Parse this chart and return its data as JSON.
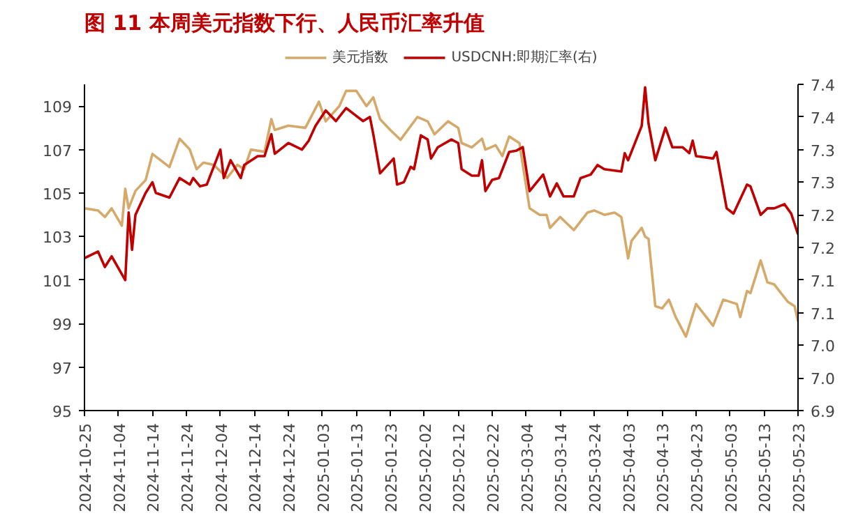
{
  "chart_data": {
    "type": "line",
    "title": "图 11 本周美元指数下行、人民币汇率升值",
    "xlim": [
      "2024-10-25",
      "2025-05-23"
    ],
    "xticks": [
      "2024-10-25",
      "2024-11-04",
      "2024-11-14",
      "2024-11-24",
      "2024-12-04",
      "2024-12-14",
      "2024-12-24",
      "2025-01-03",
      "2025-01-13",
      "2025-01-23",
      "2025-02-02",
      "2025-02-12",
      "2025-02-22",
      "2025-03-04",
      "2025-03-14",
      "2025-03-24",
      "2025-04-03",
      "2025-04-13",
      "2025-04-23",
      "2025-05-03",
      "2025-05-13",
      "2025-05-23"
    ],
    "ylim": [
      95,
      110
    ],
    "yticks": [
      95,
      97,
      99,
      101,
      103,
      105,
      107,
      109
    ],
    "y2lim": [
      6.9,
      7.45
    ],
    "y2ticks": [
      {
        "value": 6.9,
        "label": "6.9"
      },
      {
        "value": 6.955,
        "label": "7.0"
      },
      {
        "value": 7.01,
        "label": "7.0"
      },
      {
        "value": 7.065,
        "label": "7.1"
      },
      {
        "value": 7.12,
        "label": "7.1"
      },
      {
        "value": 7.175,
        "label": "7.2"
      },
      {
        "value": 7.23,
        "label": "7.2"
      },
      {
        "value": 7.285,
        "label": "7.3"
      },
      {
        "value": 7.34,
        "label": "7.3"
      },
      {
        "value": 7.395,
        "label": "7.4"
      },
      {
        "value": 7.45,
        "label": "7.4"
      }
    ],
    "grid": false,
    "legend": "top",
    "marker": "none",
    "line_style": "solid",
    "series": [
      {
        "name": "美元指数",
        "color": "#d4a96a",
        "x": [
          "2024-10-25",
          "2024-10-29",
          "2024-10-31",
          "2024-11-02",
          "2024-11-05",
          "2024-11-06",
          "2024-11-07",
          "2024-11-09",
          "2024-11-12",
          "2024-11-14",
          "2024-11-19",
          "2024-11-22",
          "2024-11-25",
          "2024-11-27",
          "2024-11-29",
          "2024-12-02",
          "2024-12-06",
          "2024-12-09",
          "2024-12-11",
          "2024-12-13",
          "2024-12-17",
          "2024-12-19",
          "2024-12-20",
          "2024-12-24",
          "2024-12-29",
          "2025-01-01",
          "2025-01-02",
          "2025-01-04",
          "2025-01-08",
          "2025-01-10",
          "2025-01-13",
          "2025-01-16",
          "2025-01-18",
          "2025-01-20",
          "2025-01-23",
          "2025-01-26",
          "2025-01-31",
          "2025-02-03",
          "2025-02-05",
          "2025-02-09",
          "2025-02-12",
          "2025-02-13",
          "2025-02-16",
          "2025-02-19",
          "2025-02-20",
          "2025-02-23",
          "2025-02-25",
          "2025-02-27",
          "2025-03-02",
          "2025-03-05",
          "2025-03-08",
          "2025-03-10",
          "2025-03-11",
          "2025-03-14",
          "2025-03-18",
          "2025-03-22",
          "2025-03-24",
          "2025-03-27",
          "2025-03-30",
          "2025-04-01",
          "2025-04-03",
          "2025-04-04",
          "2025-04-07",
          "2025-04-08",
          "2025-04-09",
          "2025-04-11",
          "2025-04-13",
          "2025-04-15",
          "2025-04-17",
          "2025-04-20",
          "2025-04-23",
          "2025-04-25",
          "2025-04-28",
          "2025-05-01",
          "2025-05-05",
          "2025-05-06",
          "2025-05-08",
          "2025-05-09",
          "2025-05-12",
          "2025-05-14",
          "2025-05-16",
          "2025-05-20",
          "2025-05-22",
          "2025-05-23"
        ],
        "values": [
          104.3,
          104.2,
          103.9,
          104.3,
          103.5,
          105.2,
          104.3,
          105.1,
          105.6,
          106.8,
          106.2,
          107.5,
          107.0,
          106.1,
          106.4,
          106.3,
          105.7,
          106.3,
          106.1,
          107.0,
          106.9,
          108.4,
          107.9,
          108.1,
          108.0,
          108.9,
          109.2,
          108.3,
          109.0,
          109.7,
          109.7,
          109.0,
          109.4,
          108.4,
          107.9,
          107.45,
          108.5,
          108.3,
          107.7,
          108.3,
          108.0,
          107.3,
          107.1,
          107.5,
          107.0,
          107.2,
          106.7,
          107.6,
          107.3,
          104.3,
          104.0,
          104.0,
          103.4,
          103.9,
          103.3,
          104.1,
          104.2,
          104.0,
          104.1,
          103.9,
          102.0,
          102.8,
          103.4,
          103.0,
          102.9,
          99.8,
          99.7,
          100.1,
          99.3,
          98.4,
          99.9,
          99.5,
          98.9,
          100.1,
          99.9,
          99.3,
          100.5,
          100.4,
          101.9,
          100.9,
          100.8,
          100.0,
          99.8,
          99.1
        ]
      },
      {
        "name": "USDCNH:即期汇率(右)",
        "color": "#c00000",
        "axis": "y2",
        "x": [
          "2024-10-25",
          "2024-10-29",
          "2024-10-31",
          "2024-11-02",
          "2024-11-06",
          "2024-11-07",
          "2024-11-08",
          "2024-11-09",
          "2024-11-12",
          "2024-11-14",
          "2024-11-15",
          "2024-11-19",
          "2024-11-22",
          "2024-11-25",
          "2024-11-26",
          "2024-11-28",
          "2024-11-30",
          "2024-12-04",
          "2024-12-05",
          "2024-12-07",
          "2024-12-10",
          "2024-12-11",
          "2024-12-15",
          "2024-12-17",
          "2024-12-19",
          "2024-12-20",
          "2024-12-24",
          "2024-12-28",
          "2024-12-30",
          "2025-01-01",
          "2025-01-04",
          "2025-01-07",
          "2025-01-10",
          "2025-01-15",
          "2025-01-17",
          "2025-01-18",
          "2025-01-20",
          "2025-01-24",
          "2025-01-25",
          "2025-01-27",
          "2025-01-29",
          "2025-01-30",
          "2025-02-01",
          "2025-02-03",
          "2025-02-04",
          "2025-02-06",
          "2025-02-10",
          "2025-02-12",
          "2025-02-13",
          "2025-02-16",
          "2025-02-18",
          "2025-02-19",
          "2025-02-20",
          "2025-02-22",
          "2025-02-24",
          "2025-02-27",
          "2025-03-01",
          "2025-03-03",
          "2025-03-05",
          "2025-03-09",
          "2025-03-11",
          "2025-03-13",
          "2025-03-15",
          "2025-03-18",
          "2025-03-20",
          "2025-03-23",
          "2025-03-25",
          "2025-03-27",
          "2025-04-01",
          "2025-04-02",
          "2025-04-03",
          "2025-04-07",
          "2025-04-08",
          "2025-04-09",
          "2025-04-11",
          "2025-04-14",
          "2025-04-16",
          "2025-04-19",
          "2025-04-21",
          "2025-04-22",
          "2025-04-23",
          "2025-04-28",
          "2025-04-29",
          "2025-05-02",
          "2025-05-04",
          "2025-05-08",
          "2025-05-09",
          "2025-05-12",
          "2025-05-14",
          "2025-05-16",
          "2025-05-19",
          "2025-05-21",
          "2025-05-23"
        ],
        "values": [
          7.157,
          7.168,
          7.142,
          7.16,
          7.12,
          7.234,
          7.171,
          7.23,
          7.267,
          7.285,
          7.267,
          7.259,
          7.292,
          7.281,
          7.292,
          7.278,
          7.281,
          7.34,
          7.292,
          7.322,
          7.292,
          7.314,
          7.329,
          7.329,
          7.366,
          7.333,
          7.351,
          7.34,
          7.355,
          7.38,
          7.406,
          7.388,
          7.41,
          7.388,
          7.395,
          7.366,
          7.3,
          7.325,
          7.281,
          7.285,
          7.311,
          7.307,
          7.364,
          7.357,
          7.325,
          7.344,
          7.357,
          7.351,
          7.307,
          7.296,
          7.296,
          7.322,
          7.27,
          7.289,
          7.292,
          7.336,
          7.338,
          7.344,
          7.27,
          7.298,
          7.261,
          7.283,
          7.261,
          7.261,
          7.292,
          7.298,
          7.314,
          7.307,
          7.303,
          7.334,
          7.322,
          7.38,
          7.445,
          7.384,
          7.322,
          7.377,
          7.344,
          7.344,
          7.334,
          7.355,
          7.329,
          7.325,
          7.336,
          7.241,
          7.232,
          7.281,
          7.278,
          7.23,
          7.241,
          7.241,
          7.248,
          7.232,
          7.197
        ]
      }
    ]
  }
}
